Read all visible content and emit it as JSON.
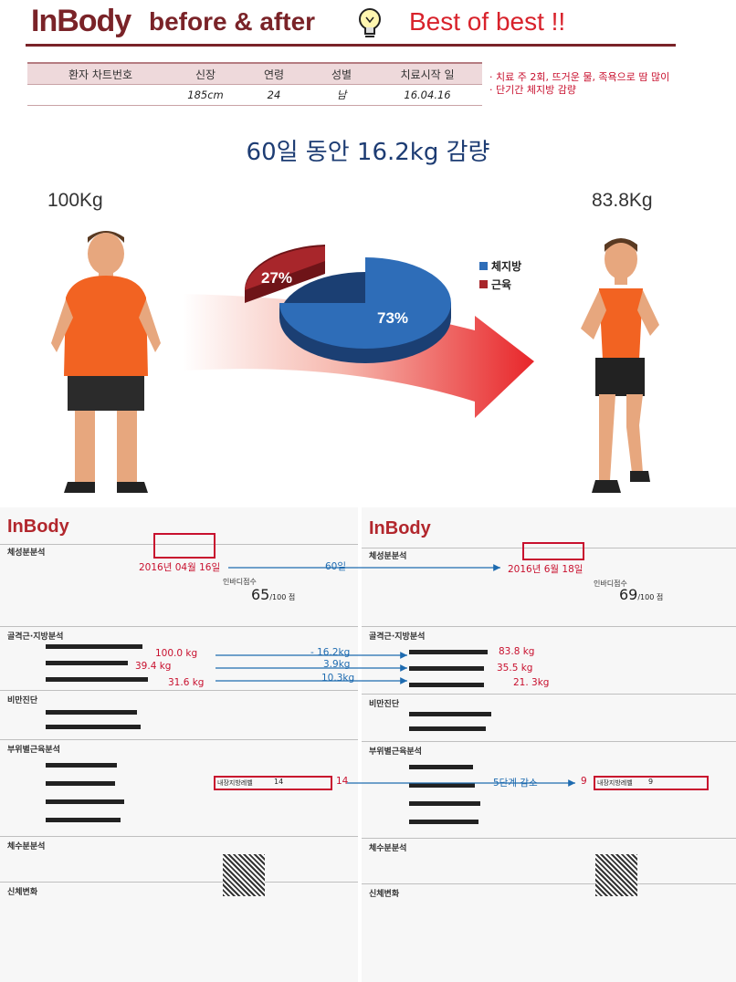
{
  "header": {
    "logo": "InBody",
    "title": "before & after",
    "best": "Best of best !!"
  },
  "patient_table": {
    "headers": [
      "환자 차트번호",
      "신장",
      "연령",
      "성별",
      "치료시작 일"
    ],
    "values": [
      "",
      "185cm",
      "24",
      "남",
      "16.04.16"
    ]
  },
  "notes": [
    "치료 주 2회, 뜨거운 물, 족욕으로 땀 많이",
    "단기간 체지방 감량"
  ],
  "headline": "60일 동안 16.2kg 감량",
  "weight_before": "100Kg",
  "weight_after": "83.8Kg",
  "pie": {
    "slices": [
      {
        "label": "체지방",
        "pct": "73%",
        "color": "#2e6db8"
      },
      {
        "label": "근육",
        "pct": "27%",
        "color": "#a8262b"
      }
    ]
  },
  "doc_left": {
    "logo": "InBody",
    "date": "2016년 04월 16일",
    "score": "65",
    "score_unit": "/100 점",
    "weight": "100.0 kg",
    "muscle": "39.4 kg",
    "fat": "31.6 kg",
    "visceral": "14",
    "sec_comp": "체성분분석",
    "sec_mf": "골격근·지방분석",
    "sec_obesity": "비만진단",
    "sec_seg": "부위별근육분석",
    "sec_water": "체수분분석",
    "sec_hist": "신체변화",
    "score_label": "인바디점수",
    "visceral_label": "내장지방레벨"
  },
  "doc_right": {
    "logo": "InBody",
    "date": "2016년 6월 18일",
    "score": "69",
    "score_unit": "/100 점",
    "weight": "83.8 kg",
    "muscle": "35.5 kg",
    "fat": "21. 3kg",
    "visceral": "9",
    "sec_comp": "체성분분석",
    "sec_mf": "골격근·지방분석",
    "sec_obesity": "비만진단",
    "sec_seg": "부위별근육분석",
    "sec_water": "체수분분석",
    "sec_hist": "신체변화",
    "score_label": "인바디점수",
    "visceral_label": "내장지방레벨"
  },
  "changes": {
    "days": "60일",
    "weight": "- 16.2kg",
    "muscle": "3.9kg",
    "fat": "10.3kg",
    "visceral_before": "14",
    "visceral_text": "5단계 감소",
    "visceral_after": "9"
  }
}
